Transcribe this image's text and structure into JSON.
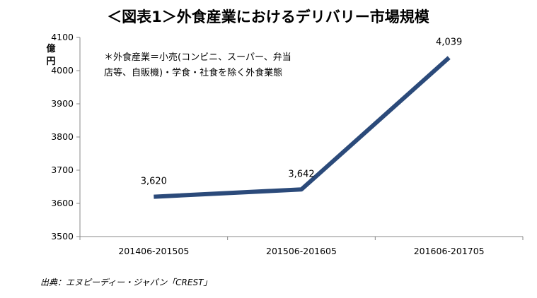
{
  "chart_data": {
    "type": "line",
    "title": "＜図表1＞外食産業におけるデリバリー市場規模",
    "ylabel": "億円",
    "xlabel": "",
    "categories": [
      "201406-201505",
      "201506-201605",
      "201606-201705"
    ],
    "series": [
      {
        "values": [
          3620,
          3642,
          4039
        ],
        "color": "#2b4a7a"
      }
    ],
    "data_labels": [
      "3,620",
      "3,642",
      "4,039"
    ],
    "ylim": [
      3500,
      4100
    ],
    "yticks": [
      3500,
      3600,
      3700,
      3800,
      3900,
      4000,
      4100
    ],
    "grid": false,
    "legend": "none",
    "annotation": [
      "＊外食産業＝小売(コンビニ、スーパー、弁当",
      "店等、自販機)・学食・社食を除く外食業態"
    ]
  },
  "source": "出典：エヌピーディー・ジャパン「CREST」"
}
